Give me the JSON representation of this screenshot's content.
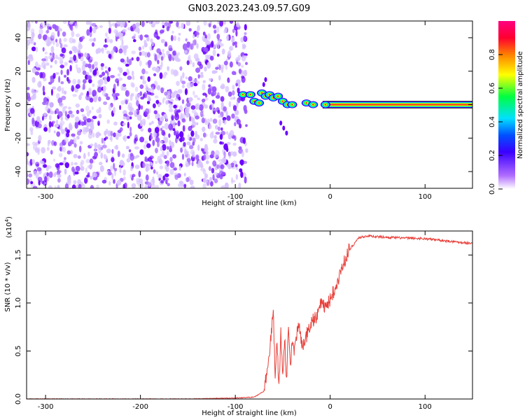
{
  "title": "GN03.2023.243.09.57.G09",
  "colors": {
    "snr_line": "#e8403a",
    "dense_dots": "#6a00ff",
    "light_dots": "#d8c4ff",
    "trace_center": "#ff3030",
    "axis": "#000000"
  },
  "chart_data": [
    {
      "type": "heatmap",
      "title": "GN03.2023.243.09.57.G09",
      "xlabel": "Height of straight line (km)",
      "ylabel": "Frequency (Hz)",
      "xlim": [
        -320,
        150
      ],
      "ylim": [
        -50,
        50
      ],
      "x_ticks": [
        -300,
        -200,
        -100,
        0,
        100
      ],
      "y_ticks": [
        -40,
        -20,
        0,
        20,
        40
      ],
      "noise_region_x": [
        -320,
        -88
      ],
      "signal": {
        "frequency_hz": 0,
        "x_start": -88,
        "x_end": 150,
        "early_offsets": [
          {
            "x": -92,
            "y": 6
          },
          {
            "x": -84,
            "y": 6
          },
          {
            "x": -80,
            "y": 2
          },
          {
            "x": -75,
            "y": 1
          },
          {
            "x": -72,
            "y": 7
          },
          {
            "x": -68,
            "y": 5
          },
          {
            "x": -64,
            "y": 6
          },
          {
            "x": -60,
            "y": 4
          },
          {
            "x": -55,
            "y": 5
          },
          {
            "x": -50,
            "y": 2
          },
          {
            "x": -45,
            "y": 0
          },
          {
            "x": -40,
            "y": 0
          },
          {
            "x": -25,
            "y": 1
          },
          {
            "x": -18,
            "y": 0
          },
          {
            "x": -5,
            "y": 0
          }
        ],
        "side_track": [
          {
            "x": -70,
            "y": 12
          },
          {
            "x": -68,
            "y": 15
          },
          {
            "x": -52,
            "y": -11
          },
          {
            "x": -49,
            "y": -14
          },
          {
            "x": -46,
            "y": -17
          }
        ]
      },
      "colorbar": {
        "label": "Normalized spectral amplitude",
        "ticks": [
          0.0,
          0.2,
          0.4,
          0.6,
          0.8
        ],
        "tick_labels": [
          "0.0",
          "0.2",
          "0.4",
          "0.6",
          "0.8"
        ],
        "range": [
          0,
          1
        ],
        "colors": [
          "#ffffff",
          "#b06cff",
          "#3b00ff",
          "#0050ff",
          "#00e0ff",
          "#00ff40",
          "#ffff00",
          "#ff8000",
          "#ff0030",
          "#ff0080"
        ]
      }
    },
    {
      "type": "line",
      "xlabel": "Height of straight line (km)",
      "ylabel": "SNR (10 * v/v)",
      "multiplier_label": "(x10",
      "multiplier_exponent": "4",
      "xlim": [
        -320,
        150
      ],
      "ylim": [
        0,
        1.75
      ],
      "x_ticks": [
        -300,
        -200,
        -100,
        0,
        100
      ],
      "y_ticks": [
        0.0,
        0.5,
        1.0,
        1.5
      ],
      "y_tick_labels": [
        "0.0",
        "0.5",
        "1.0",
        "1.5"
      ],
      "series": [
        {
          "x": [
            -320,
            -250,
            -200,
            -150,
            -100,
            -80,
            -70,
            -65,
            -60,
            -58,
            -56,
            -54,
            -52,
            -50,
            -48,
            -46,
            -44,
            -42,
            -40,
            -38,
            -35,
            -32,
            -30,
            -25,
            -20,
            -15,
            -10,
            -5,
            0,
            5,
            10,
            20,
            30,
            40,
            50,
            70,
            100,
            120,
            140,
            150
          ],
          "y": [
            0.0,
            0.0,
            0.0,
            0.0,
            0.01,
            0.02,
            0.08,
            0.35,
            0.95,
            0.2,
            0.6,
            0.1,
            0.7,
            0.25,
            0.65,
            0.15,
            0.75,
            0.3,
            0.6,
            0.45,
            0.7,
            0.75,
            0.55,
            0.65,
            0.8,
            0.85,
            1.0,
            0.95,
            1.05,
            1.15,
            1.3,
            1.55,
            1.68,
            1.7,
            1.69,
            1.68,
            1.67,
            1.65,
            1.63,
            1.62
          ]
        }
      ]
    }
  ]
}
